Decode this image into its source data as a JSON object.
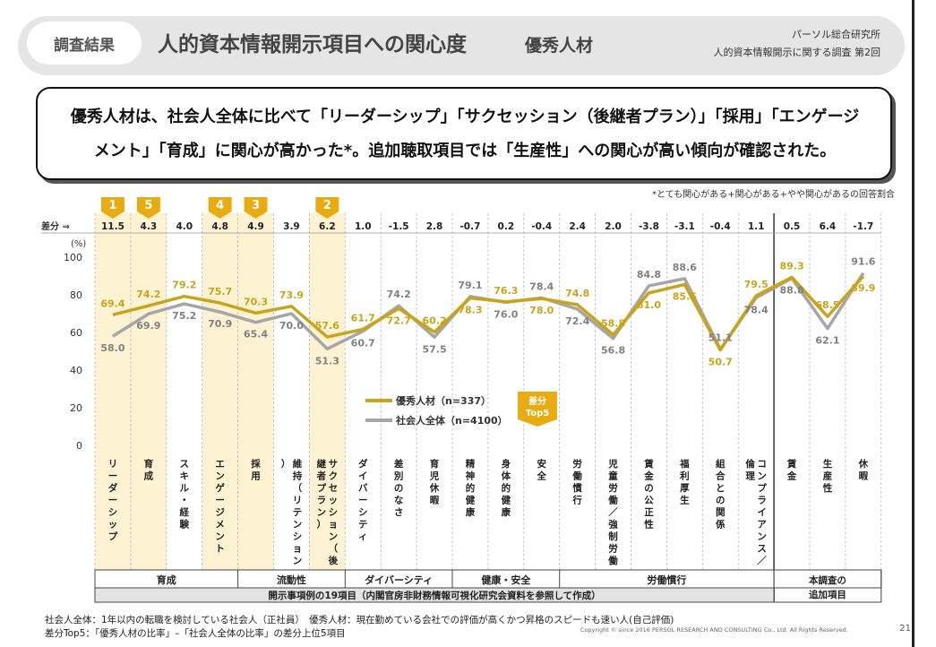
{
  "header": {
    "badge": "調査結果",
    "title": "人的資本情報開示項目への関心度",
    "subtitle": "優秀人材",
    "org": "パーソル総合研究所",
    "survey": "人的資本情報開示に関する調査 第2回"
  },
  "summary": {
    "line1": "優秀人材は、社会人全体に比べて「リーダーシップ」「サクセッション（後継者プラン）」「採用」「エンゲージ",
    "line2": "メント」「育成」に関心が高かった*。追加聴取項目では「生産性」への関心が高い傾向が確認された。"
  },
  "rate_note": "*とても関心がある+関心がある+やや関心があるの回答割合",
  "chart_data": {
    "type": "line",
    "ylabel": "(%)",
    "ylim": [
      0,
      100
    ],
    "yticks": [
      0,
      20,
      40,
      60,
      80,
      100
    ],
    "diff_label": "差分 ⇒",
    "categories": [
      "リーダーシップ",
      "育成",
      "スキル・経験",
      "エンゲージメント",
      "採用",
      "維持（リテンション）",
      "サクセッション（後継者プラン）",
      "ダイバーシティ",
      "差別のなさ",
      "育児休暇",
      "精神的健康",
      "身体的健康",
      "安全",
      "労働慣行",
      "児童労働／強制労働",
      "賃金の公正性",
      "福利厚生",
      "組合との関係",
      "コンプライアンス／倫理",
      "賃金",
      "生産性",
      "休暇"
    ],
    "series": [
      {
        "name": "優秀人材（n=337）",
        "color": "#c9a41a",
        "values": [
          69.4,
          74.2,
          79.2,
          75.7,
          70.3,
          73.9,
          57.6,
          61.7,
          72.7,
          60.2,
          78.3,
          76.3,
          78.0,
          74.8,
          58.8,
          81.0,
          85.5,
          50.7,
          79.5,
          89.3,
          68.5,
          89.9
        ]
      },
      {
        "name": "社会人全体（n=4100）",
        "color": "#a6a6a6",
        "values": [
          58.0,
          69.9,
          75.2,
          70.9,
          65.4,
          70.0,
          51.3,
          60.7,
          74.2,
          57.5,
          79.1,
          76.0,
          78.4,
          72.4,
          56.8,
          84.8,
          88.6,
          51.1,
          78.4,
          88.8,
          62.1,
          91.6
        ]
      }
    ],
    "diffs": [
      "11.5",
      "4.3",
      "4.0",
      "4.8",
      "4.9",
      "3.9",
      "6.2",
      "1.0",
      "-1.5",
      "2.8",
      "-0.7",
      "0.2",
      "-0.4",
      "2.4",
      "2.0",
      "-3.8",
      "-3.1",
      "-0.4",
      "1.1",
      "0.5",
      "6.4",
      "-1.7"
    ],
    "top5": [
      {
        "index": 0,
        "rank": "1"
      },
      {
        "index": 1,
        "rank": "5"
      },
      {
        "index": 3,
        "rank": "4"
      },
      {
        "index": 4,
        "rank": "3"
      },
      {
        "index": 6,
        "rank": "2"
      }
    ],
    "top5_legend": [
      "差分",
      "Top5"
    ],
    "groups": [
      {
        "label": "育成",
        "start": 0,
        "end": 3
      },
      {
        "label": "流動性",
        "start": 4,
        "end": 6
      },
      {
        "label": "ダイバーシティ",
        "start": 7,
        "end": 9
      },
      {
        "label": "健康・安全",
        "start": 10,
        "end": 12
      },
      {
        "label": "労働慣行",
        "start": 13,
        "end": 18
      },
      {
        "label": "本調査の追加項目",
        "start": 19,
        "end": 21
      }
    ],
    "disclosure_label": "開示事項例の19項目（内閣官房非財務情報可視化研究会資料を参照して作成）"
  },
  "notes": {
    "line1": "社会人全体：1年以内の転職を検討している社会人（正社員）　優秀人材：現在勤めている会社での評価が高くかつ昇格のスピードも速い人(自己評価)",
    "line2": "差分Top5：「優秀人材の比率」–「社会人全体の比率」の差分上位5項目"
  },
  "copyright": "Copyright © since 2016 PERSOL RESEARCH AND CONSULTING Co., Ltd. All Rights Reserved.",
  "page_number": "21"
}
